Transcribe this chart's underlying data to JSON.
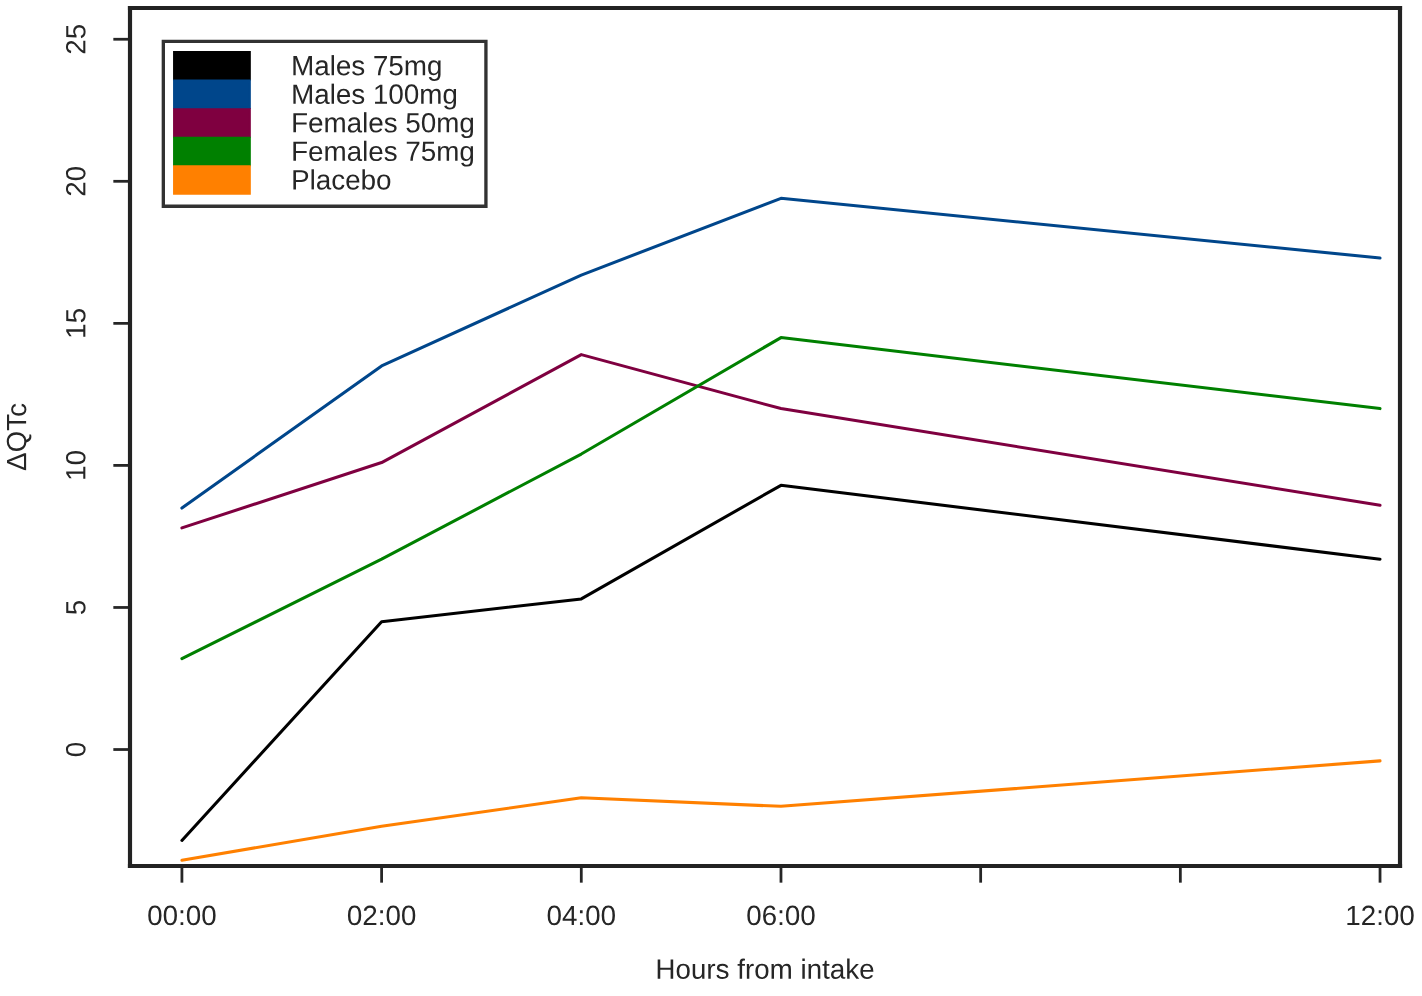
{
  "chart_data": {
    "type": "line",
    "xlabel": "Hours from intake",
    "ylabel": "ΔQTc",
    "x": [
      0,
      2,
      4,
      6,
      12
    ],
    "series": [
      {
        "name": "Males 75mg",
        "color": "#000000",
        "values": [
          -3.2,
          4.5,
          5.3,
          9.3,
          6.7
        ]
      },
      {
        "name": "Males 100mg",
        "color": "#00468b",
        "values": [
          8.5,
          13.5,
          16.7,
          19.4,
          17.3
        ]
      },
      {
        "name": "Females 50mg",
        "color": "#7f0040",
        "values": [
          7.8,
          10.1,
          13.9,
          12.0,
          8.6
        ]
      },
      {
        "name": "Females 75mg",
        "color": "#008000",
        "values": [
          3.2,
          6.7,
          10.4,
          14.5,
          12.0
        ]
      },
      {
        "name": "Placebo",
        "color": "#ff8000",
        "values": [
          -3.9,
          -2.7,
          -1.7,
          -2.0,
          -0.4
        ]
      }
    ],
    "xlim": [
      -0.52,
      12.2
    ],
    "ylim": [
      -4.1,
      26.1
    ],
    "xticks": [
      {
        "value": 0,
        "label": "00:00"
      },
      {
        "value": 2,
        "label": "02:00"
      },
      {
        "value": 4,
        "label": "04:00"
      },
      {
        "value": 6,
        "label": "06:00"
      },
      {
        "value": 8,
        "label": null
      },
      {
        "value": 10,
        "label": null
      },
      {
        "value": 12,
        "label": "12:00"
      }
    ],
    "yticks": [
      0,
      5,
      10,
      15,
      20,
      25
    ],
    "grid": false,
    "legend": "top left",
    "marker": "none",
    "line_style": "solid"
  }
}
